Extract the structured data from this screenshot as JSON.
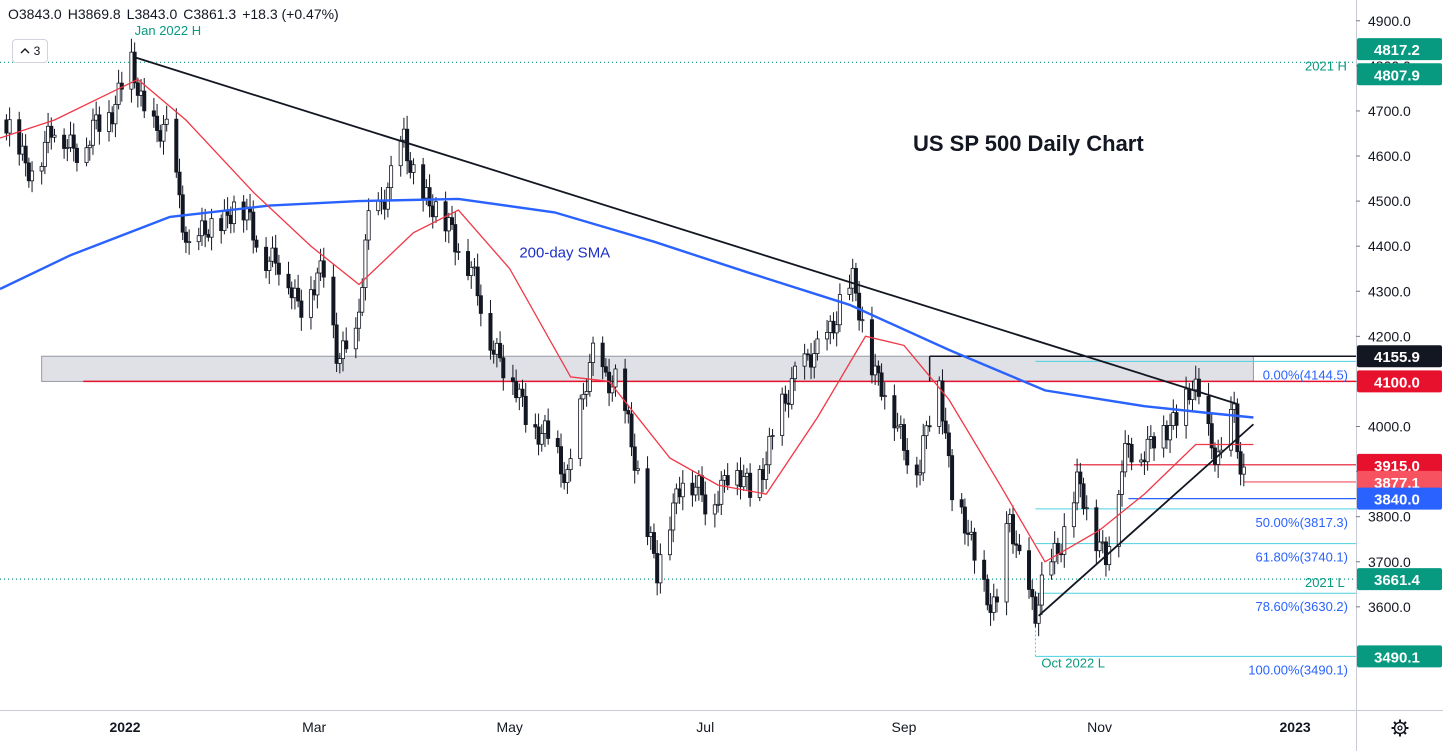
{
  "ohlc": {
    "open": "O3843.0",
    "high": "H3869.8",
    "low": "L3843.0",
    "close": "C3861.3",
    "change": "+18.3 (+0.47%)"
  },
  "layers_count": "3",
  "chart_data": {
    "type": "candlestick",
    "title": "US SP 500 Daily Chart",
    "ylim": [
      3400,
      4935
    ],
    "y_ticks": [
      3600,
      3700,
      3800,
      3900,
      4000,
      4100,
      4200,
      4300,
      4400,
      4500,
      4600,
      4700,
      4800,
      4900
    ],
    "y_tick_labels": [
      "3600.0",
      "3700.0",
      "3800.0",
      "3900.0",
      "4000.0",
      "4100.0",
      "4200.0",
      "4300.0",
      "4400.0",
      "4500.0",
      "4600.0",
      "4700.0",
      "4800.0",
      "4900.0"
    ],
    "x_labels": [
      "2022",
      "Mar",
      "May",
      "Jul",
      "Sep",
      "Nov",
      "2023"
    ],
    "x_label_dates": [
      "2022-01-01",
      "2022-03-01",
      "2022-05-01",
      "2022-07-01",
      "2022-09-01",
      "2022-11-01",
      "2023-01-01"
    ],
    "x_start": "2021-11-23",
    "x_end": "2023-01-20",
    "series": [
      {
        "name": "200-day SMA",
        "color": "#2962ff",
        "points": [
          [
            "2021-11-23",
            4305
          ],
          [
            "2021-12-15",
            4380
          ],
          [
            "2022-01-15",
            4465
          ],
          [
            "2022-02-15",
            4490
          ],
          [
            "2022-03-15",
            4500
          ],
          [
            "2022-04-15",
            4505
          ],
          [
            "2022-05-15",
            4475
          ],
          [
            "2022-06-15",
            4410
          ],
          [
            "2022-07-15",
            4340
          ],
          [
            "2022-08-15",
            4270
          ],
          [
            "2022-09-15",
            4170
          ],
          [
            "2022-10-15",
            4080
          ],
          [
            "2022-11-15",
            4045
          ],
          [
            "2022-12-05",
            4030
          ],
          [
            "2022-12-19",
            4020
          ]
        ]
      },
      {
        "name": "",
        "color": "#f23645",
        "points": [
          [
            "2021-11-23",
            4640
          ],
          [
            "2021-12-10",
            4680
          ],
          [
            "2022-01-05",
            4770
          ],
          [
            "2022-01-20",
            4680
          ],
          [
            "2022-02-10",
            4520
          ],
          [
            "2022-02-28",
            4400
          ],
          [
            "2022-03-15",
            4315
          ],
          [
            "2022-04-01",
            4430
          ],
          [
            "2022-04-15",
            4480
          ],
          [
            "2022-05-01",
            4350
          ],
          [
            "2022-05-20",
            4110
          ],
          [
            "2022-06-01",
            4100
          ],
          [
            "2022-06-20",
            3930
          ],
          [
            "2022-07-05",
            3870
          ],
          [
            "2022-07-20",
            3850
          ],
          [
            "2022-08-05",
            4020
          ],
          [
            "2022-08-20",
            4200
          ],
          [
            "2022-09-01",
            4180
          ],
          [
            "2022-09-15",
            4060
          ],
          [
            "2022-10-01",
            3870
          ],
          [
            "2022-10-15",
            3700
          ],
          [
            "2022-11-01",
            3770
          ],
          [
            "2022-11-15",
            3850
          ],
          [
            "2022-12-01",
            3960
          ],
          [
            "2022-12-19",
            3960
          ]
        ]
      }
    ],
    "candles": [
      [
        "2021-11-25",
        4680
      ],
      [
        "2021-12-01",
        4570
      ],
      [
        "2021-12-10",
        4650
      ],
      [
        "2021-12-20",
        4620
      ],
      [
        "2022-01-03",
        4790
      ],
      [
        "2022-01-07",
        4700
      ],
      [
        "2022-01-14",
        4640
      ],
      [
        "2022-01-21",
        4400
      ],
      [
        "2022-01-28",
        4430
      ],
      [
        "2022-02-04",
        4500
      ],
      [
        "2022-02-11",
        4420
      ],
      [
        "2022-02-18",
        4350
      ],
      [
        "2022-02-24",
        4280
      ],
      [
        "2022-03-04",
        4330
      ],
      [
        "2022-03-08",
        4180
      ],
      [
        "2022-03-14",
        4175
      ],
      [
        "2022-03-18",
        4460
      ],
      [
        "2022-03-25",
        4540
      ],
      [
        "2022-03-29",
        4630
      ],
      [
        "2022-04-06",
        4480
      ],
      [
        "2022-04-13",
        4450
      ],
      [
        "2022-04-22",
        4270
      ],
      [
        "2022-04-29",
        4130
      ],
      [
        "2022-05-09",
        4000
      ],
      [
        "2022-05-19",
        3900
      ],
      [
        "2022-05-27",
        4150
      ],
      [
        "2022-06-03",
        4100
      ],
      [
        "2022-06-10",
        3900
      ],
      [
        "2022-06-16",
        3670
      ],
      [
        "2022-06-24",
        3910
      ],
      [
        "2022-07-01",
        3820
      ],
      [
        "2022-07-08",
        3900
      ],
      [
        "2022-07-15",
        3860
      ],
      [
        "2022-07-22",
        3960
      ],
      [
        "2022-07-29",
        4130
      ],
      [
        "2022-08-05",
        4150
      ],
      [
        "2022-08-12",
        4280
      ],
      [
        "2022-08-16",
        4305
      ],
      [
        "2022-08-23",
        4130
      ],
      [
        "2022-08-30",
        3990
      ],
      [
        "2022-09-06",
        3910
      ],
      [
        "2022-09-12",
        4110
      ],
      [
        "2022-09-16",
        3870
      ],
      [
        "2022-09-23",
        3700
      ],
      [
        "2022-09-30",
        3590
      ],
      [
        "2022-10-04",
        3790
      ],
      [
        "2022-10-12",
        3580
      ],
      [
        "2022-10-18",
        3720
      ],
      [
        "2022-10-25",
        3860
      ],
      [
        "2022-11-03",
        3720
      ],
      [
        "2022-11-10",
        3960
      ],
      [
        "2022-11-17",
        3950
      ],
      [
        "2022-11-25",
        4030
      ],
      [
        "2022-11-30",
        4080
      ],
      [
        "2022-12-05",
        3990
      ],
      [
        "2022-12-09",
        3930
      ],
      [
        "2022-12-13",
        4020
      ],
      [
        "2022-12-15",
        3895
      ],
      [
        "2022-12-19",
        3861
      ]
    ],
    "trendlines": [
      {
        "from": [
          "2022-01-04",
          4819
        ],
        "to": [
          "2022-12-14",
          4050
        ],
        "color": "#131722"
      },
      {
        "from": [
          "2022-10-13",
          3580
        ],
        "to": [
          "2022-12-19",
          4005
        ],
        "color": "#131722"
      }
    ],
    "zone": {
      "from": "2021-12-06",
      "to": "2022-12-19",
      "ymin": 4100,
      "ymax": 4155.9
    },
    "hlines": [
      {
        "value": 4807.9,
        "color": "#089981",
        "style": "dotted"
      },
      {
        "value": 3661.4,
        "color": "#089981",
        "style": "dotted"
      },
      {
        "value": 4100.0,
        "color": "#e8112d"
      },
      {
        "value": 3915.0,
        "color": "#e8112d"
      },
      {
        "value": 3877.1,
        "color": "#f7525f"
      },
      {
        "value": 3840.0,
        "color": "#2962ff"
      },
      {
        "value": 4155.9,
        "color": "#131722"
      }
    ],
    "fibonacci": {
      "high": 4144.5,
      "low": 3490.1,
      "levels": [
        {
          "label": "0.00%(4144.5)",
          "value": 4144.5
        },
        {
          "label": "50.00%(3817.3)",
          "value": 3817.3
        },
        {
          "label": "61.80%(3740.1)",
          "value": 3740.1
        },
        {
          "label": "78.60%(3630.2)",
          "value": 3630.2
        },
        {
          "label": "100.00%(3490.1)",
          "value": 3490.1
        }
      ],
      "color": "#4dd0e1"
    },
    "annotations": [
      {
        "text": "Jan 2022 H",
        "color": "#089981"
      },
      {
        "text": "2021 H",
        "color": "#089981"
      },
      {
        "text": "2021 L",
        "color": "#089981"
      },
      {
        "text": "Oct 2022 L",
        "color": "#089981"
      },
      {
        "text": "200-day SMA",
        "color": "#1e2fc8"
      },
      {
        "text": "US SP 500 Daily Chart",
        "color": "#131722"
      }
    ],
    "price_labels": [
      {
        "text": "4817.2",
        "value": 4817.2,
        "bg": "#089981"
      },
      {
        "text": "4807.9",
        "value": 4807.9,
        "bg": "#089981"
      },
      {
        "text": "4155.9",
        "value": 4155.9,
        "bg": "#131722"
      },
      {
        "text": "4100.0",
        "value": 4100.0,
        "bg": "#e8112d"
      },
      {
        "text": "3915.0",
        "value": 3915.0,
        "bg": "#e8112d"
      },
      {
        "text": "3877.1",
        "value": 3877.1,
        "bg": "#f7525f"
      },
      {
        "text": "3840.0",
        "value": 3840.0,
        "bg": "#2962ff"
      },
      {
        "text": "3661.4",
        "value": 3661.4,
        "bg": "#089981"
      },
      {
        "text": "3490.1",
        "value": 3490.1,
        "bg": "#089981"
      }
    ]
  }
}
